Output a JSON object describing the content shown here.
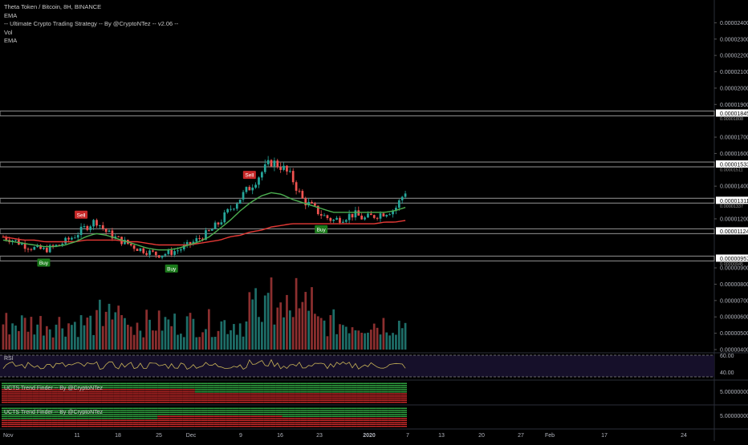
{
  "header": {
    "symbol_line": "Theta Token / Bitcoin, 8H, BINANCE",
    "indicators": [
      "EMA",
      "-- Ultimate Crypto Trading Strategy -- By @CryptoNTez -- v2.06 --",
      "Vol",
      "EMA"
    ]
  },
  "panels": {
    "rsi_label": "RSI",
    "ucts_label_1": "UCTS Trend Finder -- By @CryptoNTez",
    "ucts_label_2": "UCTS Trend Finder -- By @CryptoNTez"
  },
  "colors": {
    "background": "#000000",
    "bull": "#26a69a",
    "bear": "#ef5350",
    "vol_bull": "#1e6e68",
    "vol_bear": "#8c2f2f",
    "ema_fast": "#4caf50",
    "ema_slow": "#e53935",
    "rsi_line": "#c9b458",
    "rsi_band": "#16102a",
    "level_band": "#8a8a8a",
    "price_tag_bg": "#ffffff",
    "buy_label": "#1b7a1b",
    "sell_label": "#c62828",
    "axis_text": "#b2b5be"
  },
  "chart_data": {
    "type": "candlestick",
    "title": "Theta Token / Bitcoin, 8H, BINANCE",
    "price_axis": {
      "ticks": [
        2.4e-05,
        2.3e-05,
        2.2e-05,
        2.1e-05,
        2e-05,
        1.9e-05,
        1.7e-05,
        1.6e-05,
        1.4e-05,
        1.2e-05,
        9e-06,
        8e-06,
        7e-06,
        6e-06,
        5e-06,
        4e-06
      ],
      "tick_labels": [
        "0.00002400",
        "0.00002300",
        "0.00002200",
        "0.00002100",
        "0.00002000",
        "0.00001900",
        "0.00001700",
        "0.00001600",
        "0.00001400",
        "0.00001200",
        "0.00000900",
        "0.00000800",
        "0.00000700",
        "0.00000600",
        "0.00000500",
        "0.00000400"
      ],
      "price_range": [
        9.2e-06,
        2.5e-05
      ]
    },
    "level_tags": [
      {
        "value": 1.845e-05,
        "label": "0.00001845",
        "secondary": "0.00001808"
      },
      {
        "value": 1.533e-05,
        "label": "0.00001533",
        "secondary": "0.00001511"
      },
      {
        "value": 1.311e-05,
        "label": "0.00001311",
        "secondary": "0.00001337"
      },
      {
        "value": 1.124e-05,
        "label": "0.00001124"
      },
      {
        "value": 9.57e-06,
        "label": "0.00000957",
        "secondary": "0.00000945"
      }
    ],
    "time_axis": [
      "Nov",
      "11",
      "18",
      "25",
      "Dec",
      "9",
      "16",
      "23",
      "2020",
      "7",
      "13",
      "20",
      "27",
      "Feb",
      "17",
      "24"
    ],
    "price_path": [
      1.09e-05,
      1.07e-05,
      1.04e-05,
      1.02e-05,
      1.01e-05,
      1.03e-05,
      1.06e-05,
      1.1e-05,
      1.15e-05,
      1.19e-05,
      1.12e-05,
      1.08e-05,
      1.05e-05,
      1.02e-05,
      1e-05,
      9.8e-06,
      9.9e-06,
      1.01e-05,
      1.04e-05,
      1.08e-05,
      1.12e-05,
      1.18e-05,
      1.26e-05,
      1.33e-05,
      1.4e-05,
      1.48e-05,
      1.55e-05,
      1.52e-05,
      1.45e-05,
      1.32e-05,
      1.27e-05,
      1.22e-05,
      1.19e-05,
      1.21e-05,
      1.23e-05,
      1.2e-05,
      1.22e-05,
      1.24e-05,
      1.26e-05,
      1.37e-05
    ],
    "ema_fast_path": [
      1.07e-05,
      1.06e-05,
      1.05e-05,
      1.04e-05,
      1.03e-05,
      1.03e-05,
      1.04e-05,
      1.06e-05,
      1.09e-05,
      1.11e-05,
      1.1e-05,
      1.08e-05,
      1.06e-05,
      1.04e-05,
      1.02e-05,
      1.01e-05,
      1.01e-05,
      1.02e-05,
      1.04e-05,
      1.06e-05,
      1.09e-05,
      1.14e-05,
      1.19e-05,
      1.25e-05,
      1.3e-05,
      1.34e-05,
      1.36e-05,
      1.35e-05,
      1.32e-05,
      1.3e-05,
      1.28e-05,
      1.26e-05,
      1.24e-05,
      1.24e-05,
      1.24e-05,
      1.24e-05,
      1.24e-05,
      1.24e-05,
      1.25e-05,
      1.27e-05
    ],
    "ema_slow_path": [
      1.09e-05,
      1.08e-05,
      1.07e-05,
      1.07e-05,
      1.06e-05,
      1.06e-05,
      1.06e-05,
      1.06e-05,
      1.07e-05,
      1.07e-05,
      1.07e-05,
      1.07e-05,
      1.06e-05,
      1.06e-05,
      1.05e-05,
      1.04e-05,
      1.04e-05,
      1.04e-05,
      1.04e-05,
      1.05e-05,
      1.06e-05,
      1.07e-05,
      1.09e-05,
      1.1e-05,
      1.12e-05,
      1.13e-05,
      1.15e-05,
      1.16e-05,
      1.17e-05,
      1.17e-05,
      1.17e-05,
      1.17e-05,
      1.17e-05,
      1.17e-05,
      1.17e-05,
      1.17e-05,
      1.17e-05,
      1.18e-05,
      1.18e-05,
      1.19e-05
    ],
    "signals": [
      {
        "type": "Buy",
        "index": 13
      },
      {
        "type": "Sell",
        "index": 25
      },
      {
        "type": "Buy",
        "index": 54
      },
      {
        "type": "Sell",
        "index": 79
      },
      {
        "type": "Buy",
        "index": 102
      }
    ],
    "rsi_axis_labels": [
      "60.00",
      "40.00"
    ],
    "ucts_axis_labels": [
      "5.00000000",
      "5.00000000"
    ]
  }
}
